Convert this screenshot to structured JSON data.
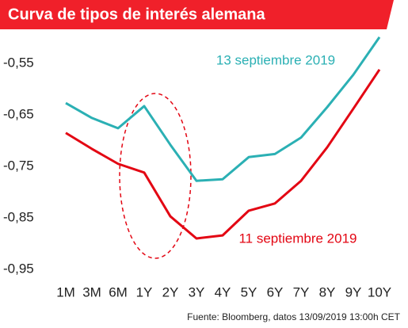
{
  "chart_data": {
    "type": "line",
    "title": "Curva de tipos de interés alemana",
    "source": "Fuente: Bloomberg, datos 13/09/2019 13:00h CET",
    "categories": [
      "1M",
      "3M",
      "6M",
      "1Y",
      "2Y",
      "3Y",
      "4Y",
      "5Y",
      "6Y",
      "7Y",
      "8Y",
      "9Y",
      "10Y"
    ],
    "series": [
      {
        "name": "13 septiembre 2019",
        "color": "#2bb0b4",
        "values": [
          -0.627,
          -0.656,
          -0.676,
          -0.633,
          -0.708,
          -0.778,
          -0.775,
          -0.732,
          -0.726,
          -0.694,
          -0.635,
          -0.572,
          -0.499
        ]
      },
      {
        "name": "11 septiembre 2019",
        "color": "#e30613",
        "values": [
          -0.685,
          -0.716,
          -0.745,
          -0.762,
          -0.847,
          -0.89,
          -0.884,
          -0.836,
          -0.822,
          -0.778,
          -0.713,
          -0.638,
          -0.562
        ]
      }
    ],
    "ylim": [
      -0.96,
      -0.48
    ],
    "yticks": [
      {
        "value": -0.55,
        "label": "-0,55"
      },
      {
        "value": -0.65,
        "label": "-0,65"
      },
      {
        "value": -0.75,
        "label": "-0,75"
      },
      {
        "value": -0.85,
        "label": "-0,85"
      },
      {
        "value": -0.95,
        "label": "-0,95"
      }
    ],
    "grid": false
  }
}
